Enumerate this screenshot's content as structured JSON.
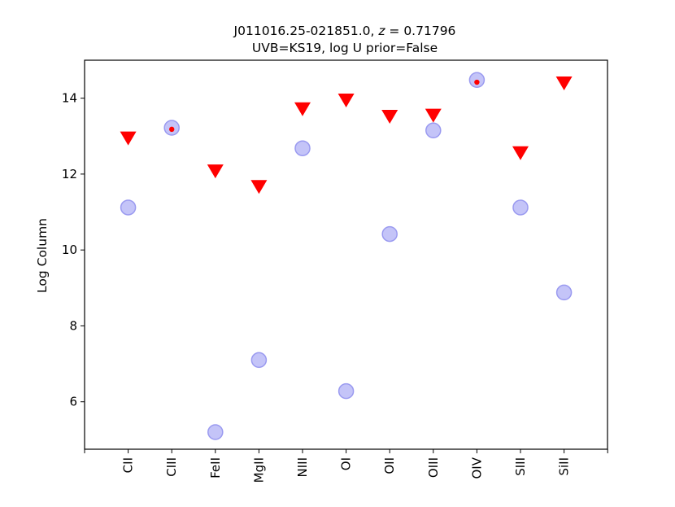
{
  "chart_data": {
    "type": "scatter",
    "title_line1_name": "J011016.25-021851.0, ",
    "title_line1_z_symbol": "z",
    "title_line1_z_value": " = 0.71796",
    "title_line2": "UVB=KS19, log U prior=False",
    "xlabel": "",
    "ylabel": "Log Column",
    "categories": [
      "CII",
      "CIII",
      "FeII",
      "MgII",
      "NIII",
      "OI",
      "OII",
      "OIII",
      "OIV",
      "SIII",
      "SiII"
    ],
    "ylim": [
      4.75,
      15.0
    ],
    "yticks": [
      6,
      8,
      10,
      12,
      14
    ],
    "grid": false,
    "model_points": [
      11.12,
      13.22,
      5.2,
      7.1,
      12.68,
      6.28,
      10.42,
      13.15,
      14.48,
      11.12,
      8.88
    ],
    "upper_limits": [
      {
        "category": "CII",
        "value": 12.95
      },
      {
        "category": "FeII",
        "value": 12.08
      },
      {
        "category": "MgII",
        "value": 11.67
      },
      {
        "category": "NIII",
        "value": 13.72
      },
      {
        "category": "OI",
        "value": 13.95
      },
      {
        "category": "OII",
        "value": 13.52
      },
      {
        "category": "OIII",
        "value": 13.55
      },
      {
        "category": "SIII",
        "value": 12.56
      },
      {
        "category": "SiII",
        "value": 14.4
      }
    ],
    "detections": [
      {
        "category": "CIII",
        "value": 13.18
      },
      {
        "category": "OIV",
        "value": 14.42
      }
    ],
    "colors": {
      "model": "#b0b0f5",
      "upper_limit": "#ff0000",
      "detection": "#ff0000"
    }
  }
}
